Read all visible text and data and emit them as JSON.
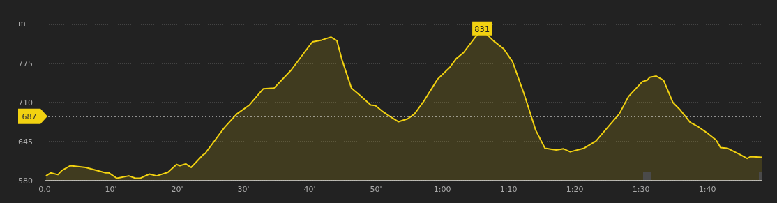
{
  "chart_data": {
    "type": "area",
    "ylabel": "m",
    "x": [
      0.2,
      0.9,
      2,
      2.6,
      3.9,
      6.2,
      9.2,
      9.7,
      10.9,
      12.7,
      13.7,
      14.4,
      15.8,
      16.9,
      18.6,
      19.9,
      20.4,
      21.3,
      22.1,
      23.9,
      24.2,
      27.1,
      29,
      30.9,
      33,
      34.6,
      37.2,
      39.3,
      40.4,
      41.8,
      43.2,
      44.1,
      44.9,
      46.3,
      47.8,
      49.2,
      49.9,
      50.9,
      52.1,
      53.4,
      54.8,
      55.8,
      57.2,
      59.3,
      61.1,
      62.1,
      63.2,
      65,
      66,
      67.8,
      69.3,
      70.6,
      72.3,
      74.1,
      75.5,
      77.2,
      78.3,
      79.3,
      81.4,
      83.2,
      84.9,
      86.7,
      88.1,
      90.2,
      90.9,
      91.3,
      92.3,
      93.4,
      94.8,
      95.8,
      97.4,
      98.6,
      99.9,
      101.3,
      102,
      103,
      105,
      106,
      106.5,
      108.3
    ],
    "series": [
      {
        "color": "#f2d211",
        "values": [
          588,
          593,
          590,
          597,
          605,
          602,
          593,
          593,
          584,
          588,
          584,
          584,
          591,
          588,
          594,
          607,
          605,
          608,
          602,
          623,
          625,
          668,
          691,
          706,
          733,
          734,
          764,
          795,
          811,
          814,
          819,
          813,
          780,
          734,
          720,
          706,
          705,
          696,
          687,
          678,
          683,
          691,
          712,
          749,
          768,
          783,
          793,
          819,
          831,
          812,
          799,
          778,
          726,
          664,
          634,
          631,
          633,
          628,
          634,
          646,
          668,
          691,
          720,
          745,
          747,
          752,
          754,
          747,
          710,
          699,
          677,
          670,
          660,
          648,
          635,
          634,
          623,
          617,
          620,
          619
        ]
      }
    ],
    "xlim": [
      0,
      108.3
    ],
    "ylim": [
      580,
      840
    ],
    "xticks": [
      {
        "value": 0,
        "label": "0.0"
      },
      {
        "value": 10,
        "label": "10'"
      },
      {
        "value": 20,
        "label": "20'"
      },
      {
        "value": 30,
        "label": "30'"
      },
      {
        "value": 40,
        "label": "40'"
      },
      {
        "value": 50,
        "label": "50'"
      },
      {
        "value": 60,
        "label": "1:00"
      },
      {
        "value": 70,
        "label": "1:10"
      },
      {
        "value": 80,
        "label": "1:20"
      },
      {
        "value": 90,
        "label": "1:30"
      },
      {
        "value": 100,
        "label": "1:40"
      }
    ],
    "yticks": [
      580,
      645,
      710,
      775,
      {
        "value": 840,
        "label": null
      }
    ],
    "grid": "y",
    "ref_lines": [
      {
        "axis": "y",
        "value": 687,
        "label": "687",
        "color": "#ffffff",
        "line_style": "dotted"
      }
    ],
    "annotations": [
      {
        "text": "831",
        "x": 66,
        "y": 831
      }
    ]
  }
}
